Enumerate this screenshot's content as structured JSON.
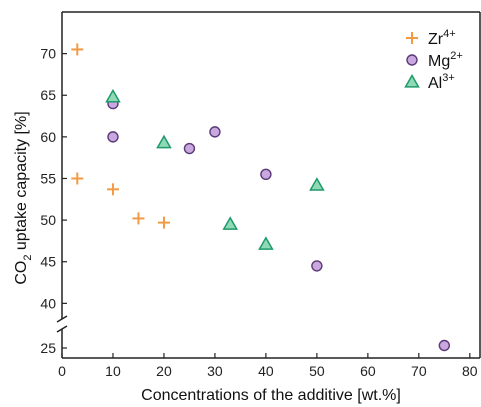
{
  "chart_data": {
    "type": "scatter",
    "xlabel": "Concentrations of the additive [wt.%]",
    "ylabel_parts": [
      "CO",
      "2",
      " uptake capacity [%]"
    ],
    "xlim": [
      0,
      82
    ],
    "ylim_upper": [
      38,
      75
    ],
    "ylim_lower": [
      23,
      29
    ],
    "axis_break": true,
    "x_ticks": [
      0,
      10,
      20,
      30,
      40,
      50,
      60,
      70,
      80
    ],
    "y_ticks_upper": [
      40,
      45,
      50,
      55,
      60,
      65,
      70
    ],
    "y_ticks_lower": [
      25
    ],
    "legend_position": "top-right",
    "series": [
      {
        "name": "Zr",
        "name_sup": "4+",
        "marker": "plus",
        "color": "#f39a45",
        "points": [
          {
            "x": 3,
            "y": 70.5
          },
          {
            "x": 3,
            "y": 55.0
          },
          {
            "x": 10,
            "y": 53.7
          },
          {
            "x": 15,
            "y": 50.2
          },
          {
            "x": 20,
            "y": 49.7
          }
        ]
      },
      {
        "name": "Mg",
        "name_sup": "2+",
        "marker": "circle",
        "color": "#c9a8e0",
        "stroke": "#5b3a78",
        "points": [
          {
            "x": 10,
            "y": 64.0
          },
          {
            "x": 10,
            "y": 60.0
          },
          {
            "x": 25,
            "y": 58.6
          },
          {
            "x": 30,
            "y": 60.6
          },
          {
            "x": 40,
            "y": 55.5
          },
          {
            "x": 50,
            "y": 44.5
          },
          {
            "x": 75,
            "y": 25.5
          }
        ]
      },
      {
        "name": "Al",
        "name_sup": "3+",
        "marker": "triangle",
        "color": "#8fd9b4",
        "stroke": "#1f9a6c",
        "points": [
          {
            "x": 10,
            "y": 64.8
          },
          {
            "x": 20,
            "y": 59.3
          },
          {
            "x": 33,
            "y": 49.5
          },
          {
            "x": 40,
            "y": 47.1
          },
          {
            "x": 50,
            "y": 54.2
          }
        ]
      }
    ]
  }
}
